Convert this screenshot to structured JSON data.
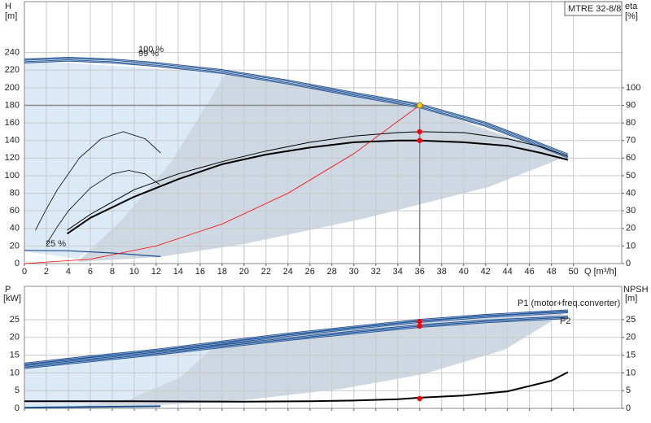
{
  "chart_data": [
    {
      "type": "line",
      "ylabel": "H",
      "yunit": "[m]",
      "y2label": "eta",
      "y2unit": "[%]",
      "xlabel": "Q [m³/h]",
      "legend_box": "MTRE 32-8/8",
      "xlim": [
        0,
        54.4
      ],
      "xticks": [
        0,
        2,
        4,
        6,
        8,
        10,
        12,
        14,
        16,
        18,
        20,
        22,
        24,
        26,
        28,
        30,
        32,
        34,
        36,
        38,
        40,
        42,
        44,
        46,
        48,
        50
      ],
      "ylim": [
        0,
        298
      ],
      "yticks": [
        0,
        20,
        40,
        60,
        80,
        100,
        120,
        140,
        160,
        180,
        200,
        220,
        240
      ],
      "y2lim": [
        0,
        149
      ],
      "y2ticks": [
        0,
        10,
        20,
        30,
        40,
        50,
        60,
        70,
        80,
        90,
        100
      ],
      "grid": true,
      "xtick_labels": true,
      "annotations": [
        "100 %",
        "99 %",
        "25 %"
      ],
      "series": [
        {
          "color": "#1f4e8c",
          "width": 2.5,
          "x": [
            0,
            4,
            8,
            12,
            18,
            24,
            30,
            36,
            42,
            46,
            49.5
          ],
          "values": [
            232,
            234,
            232,
            228,
            220,
            208,
            194,
            181,
            160,
            141,
            124
          ]
        },
        {
          "color": "#1f4e8c",
          "width": 2.5,
          "x": [
            0,
            4,
            8,
            12,
            18,
            24,
            30,
            36,
            42,
            46,
            49.5
          ],
          "values": [
            229,
            231,
            229,
            225,
            217,
            205,
            191,
            178,
            157,
            138,
            121
          ]
        },
        {
          "color": "#1f4e8c",
          "width": 1.2,
          "x": [
            0,
            4,
            8,
            12.4
          ],
          "values": [
            15,
            14.5,
            12,
            8
          ]
        },
        {
          "color": "#000000",
          "width": 1,
          "axis": "y2",
          "x": [
            3.9,
            6,
            10,
            14,
            18,
            22,
            26,
            30,
            34,
            36,
            40,
            44,
            47,
            49.5
          ],
          "values": [
            19,
            28,
            42,
            51,
            58,
            64,
            69,
            72.5,
            74.5,
            75,
            74.5,
            71,
            66.5,
            61
          ]
        },
        {
          "color": "#000000",
          "width": 2,
          "axis": "y2",
          "x": [
            3.9,
            6,
            10,
            14,
            18,
            22,
            26,
            30,
            34,
            36,
            40,
            44,
            47,
            49.5
          ],
          "values": [
            17,
            26,
            38,
            48,
            56.5,
            62,
            66,
            69,
            70,
            70,
            69,
            67,
            63,
            59
          ]
        },
        {
          "color": "#000000",
          "width": 0.8,
          "axis": "y2",
          "x": [
            1,
            2,
            3,
            5,
            7,
            9,
            11,
            12.4
          ],
          "values": [
            19,
            31,
            42,
            60,
            71,
            75,
            71,
            63
          ]
        },
        {
          "color": "#000000",
          "width": 0.8,
          "axis": "y2",
          "x": [
            2,
            3,
            4,
            6,
            8,
            9.5,
            11,
            12.3
          ],
          "values": [
            11,
            21,
            30,
            43,
            51,
            53,
            51,
            45
          ]
        },
        {
          "color": "#ff0000",
          "width": 0.8,
          "x": [
            0,
            6,
            12,
            18,
            24,
            30,
            36
          ],
          "values": [
            0,
            5,
            20,
            45,
            80,
            125,
            180
          ]
        }
      ],
      "points": [
        {
          "x": 36,
          "y": 180,
          "color": "#ffd700",
          "crosshair": true
        },
        {
          "x": 36,
          "y": 75,
          "axis": "y2",
          "color": "#ff0000"
        },
        {
          "x": 36,
          "y": 70,
          "axis": "y2",
          "color": "#ff0000"
        }
      ]
    },
    {
      "type": "line",
      "ylabel": "P",
      "yunit": "[kW]",
      "y2label": "NPSH",
      "y2unit": "[m]",
      "xlim": [
        0,
        54.4
      ],
      "xticks": [
        0,
        2,
        4,
        6,
        8,
        10,
        12,
        14,
        16,
        18,
        20,
        22,
        24,
        26,
        28,
        30,
        32,
        34,
        36,
        38,
        40,
        42,
        44,
        46,
        48,
        50
      ],
      "ylim": [
        0,
        34.4
      ],
      "yticks": [
        0,
        5,
        10,
        15,
        20,
        25
      ],
      "y2lim": [
        0,
        34.4
      ],
      "y2ticks": [
        0,
        5,
        10,
        15,
        20,
        25
      ],
      "grid": true,
      "xtick_labels": false,
      "annotations": [
        "P1 (motor+freq.converter)",
        "P2"
      ],
      "series": [
        {
          "color": "#1f4e8c",
          "width": 2.5,
          "x": [
            0,
            6,
            12,
            18,
            24,
            30,
            36,
            42,
            49.5
          ],
          "values": [
            12.6,
            14.6,
            16.5,
            18.8,
            21,
            23,
            24.9,
            26.3,
            27.6
          ]
        },
        {
          "color": "#1f4e8c",
          "width": 2.5,
          "x": [
            0,
            6,
            12,
            18,
            24,
            30,
            36,
            42,
            49.5
          ],
          "values": [
            12.1,
            14.1,
            16,
            18.3,
            20.5,
            22.5,
            24.4,
            25.8,
            27.1
          ]
        },
        {
          "color": "#1f4e8c",
          "width": 2.5,
          "x": [
            0,
            6,
            12,
            18,
            24,
            30,
            36,
            42,
            49.5
          ],
          "values": [
            11.8,
            13.7,
            15.6,
            17.7,
            19.7,
            21.6,
            23.4,
            24.7,
            25.9
          ]
        },
        {
          "color": "#1f4e8c",
          "width": 2.5,
          "x": [
            0,
            6,
            12,
            18,
            24,
            30,
            36,
            42,
            49.5
          ],
          "values": [
            11.4,
            13.3,
            15.2,
            17.3,
            19.3,
            21.2,
            23,
            24.3,
            25.5
          ]
        },
        {
          "color": "#1f4e8c",
          "width": 2,
          "x": [
            0,
            6,
            12.4
          ],
          "values": [
            0.2,
            0.4,
            0.6
          ]
        },
        {
          "color": "#000000",
          "width": 2,
          "axis": "y2",
          "x": [
            0,
            10,
            20,
            26,
            30,
            34,
            36,
            40,
            44,
            48,
            49.5
          ],
          "values": [
            2,
            2,
            1.9,
            2,
            2.2,
            2.6,
            3,
            3.6,
            4.8,
            7.8,
            10.2
          ]
        }
      ],
      "points": [
        {
          "x": 36,
          "y": 24.5,
          "color": "#ff0000"
        },
        {
          "x": 36,
          "y": 23.2,
          "color": "#ff0000"
        },
        {
          "x": 36,
          "y": 2.75,
          "axis": "y2",
          "color": "#ff0000"
        }
      ]
    }
  ]
}
